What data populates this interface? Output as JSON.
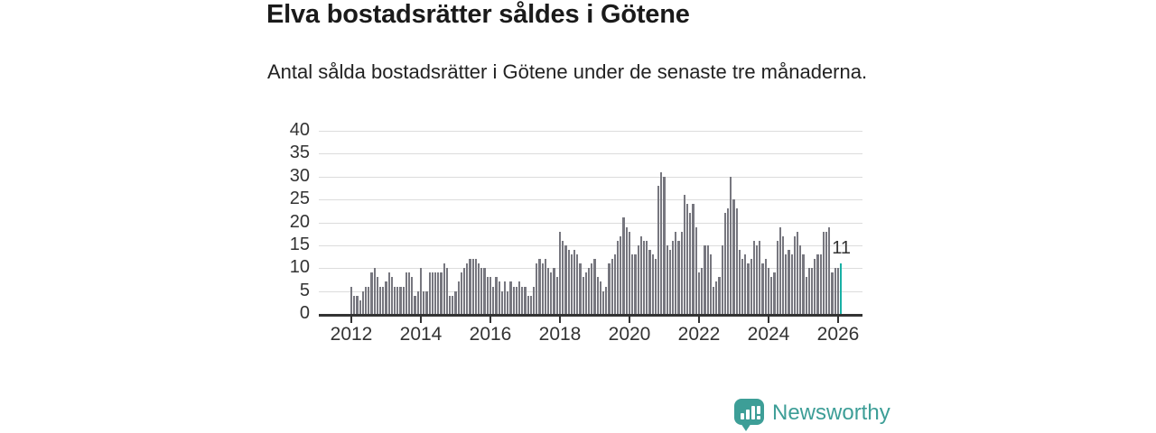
{
  "header": {
    "title": "Elva bostadsrätter såldes i Götene",
    "subtitle": "Antal sålda bostadsrätter i Götene under de senaste tre månaderna."
  },
  "chart_data": {
    "type": "bar",
    "title": "Elva bostadsrätter såldes i Götene",
    "subtitle": "Antal sålda bostadsrätter i Götene under de senaste tre månaderna.",
    "x_start": "2012-01",
    "frequency": "monthly",
    "values": [
      6,
      4,
      4,
      3,
      5,
      6,
      6,
      9,
      10,
      8,
      6,
      6,
      7,
      9,
      8,
      6,
      6,
      6,
      6,
      9,
      9,
      8,
      4,
      5,
      10,
      5,
      5,
      9,
      9,
      9,
      9,
      9,
      11,
      10,
      4,
      4,
      5,
      7,
      9,
      10,
      11,
      12,
      12,
      12,
      11,
      10,
      10,
      8,
      8,
      6,
      8,
      7,
      5,
      7,
      5,
      7,
      6,
      6,
      7,
      6,
      6,
      4,
      4,
      6,
      11,
      12,
      11,
      12,
      10,
      9,
      10,
      8,
      18,
      16,
      15,
      14,
      13,
      14,
      13,
      11,
      8,
      9,
      10,
      11,
      12,
      8,
      7,
      5,
      6,
      11,
      12,
      13,
      16,
      17,
      21,
      19,
      18,
      13,
      13,
      15,
      17,
      16,
      16,
      14,
      13,
      12,
      28,
      31,
      30,
      15,
      14,
      16,
      18,
      16,
      18,
      26,
      24,
      22,
      24,
      19,
      9,
      10,
      15,
      15,
      13,
      6,
      7,
      8,
      15,
      22,
      23,
      30,
      25,
      23,
      14,
      12,
      13,
      11,
      12,
      16,
      15,
      16,
      11,
      12,
      10,
      8,
      9,
      16,
      19,
      17,
      13,
      14,
      13,
      17,
      18,
      15,
      13,
      8,
      10,
      10,
      12,
      13,
      13,
      18,
      18,
      19,
      9,
      10,
      10,
      11
    ],
    "highlight": {
      "index": 169,
      "value": 11,
      "label": "11"
    },
    "yticks": [
      0,
      5,
      10,
      15,
      20,
      25,
      30,
      35,
      40
    ],
    "ylim": [
      0,
      40
    ],
    "xticks": [
      "2012",
      "2014",
      "2016",
      "2018",
      "2020",
      "2022",
      "2024",
      "2026"
    ],
    "grid": true,
    "legend": "none",
    "bar_color": "#77777f",
    "highlight_color": "#18b0a5",
    "axis_color": "#333333",
    "grid_color": "#dcdcdc"
  },
  "branding": {
    "logo_text": "Newsworthy",
    "logo_icon": "newsworthy-speech-bubble-bar-chart-icon",
    "brand_color": "#3d9e97"
  }
}
